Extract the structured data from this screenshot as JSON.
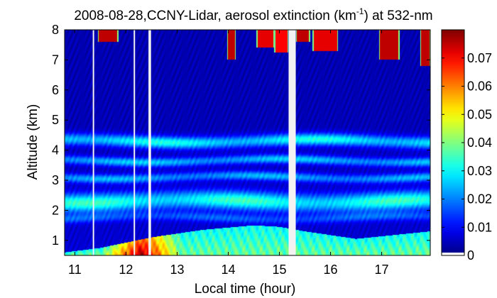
{
  "chart_data": {
    "type": "heatmap",
    "title_prefix": "2008-08-28,CCNY-Lidar, aerosol extinction (km",
    "title_superscript": "-1",
    "title_suffix": ") at 532-nm",
    "xlabel": "Local time (hour)",
    "ylabel": "Altitude (km)",
    "x_range": [
      10.8,
      17.95
    ],
    "y_range": [
      0.5,
      8
    ],
    "x_ticks": [
      11,
      12,
      13,
      14,
      15,
      16,
      17
    ],
    "x_tick_labels": [
      "11",
      "12",
      "13",
      "14",
      "15",
      "16",
      "17"
    ],
    "y_ticks": [
      1,
      2,
      3,
      4,
      5,
      6,
      7,
      8
    ],
    "y_tick_labels": [
      "1",
      "2",
      "3",
      "4",
      "5",
      "6",
      "7",
      "8"
    ],
    "colorbar": {
      "colormap": "jet",
      "range": [
        0,
        0.08
      ],
      "ticks": [
        0,
        0.01,
        0.02,
        0.03,
        0.04,
        0.05,
        0.06,
        0.07
      ],
      "tick_labels": [
        "0",
        "0.01",
        "0.02",
        "0.03",
        "0.04",
        "0.05",
        "0.06",
        "0.07"
      ]
    },
    "data_gaps_hours": [
      {
        "start": 11.35,
        "end": 11.37
      },
      {
        "start": 12.15,
        "end": 12.17
      },
      {
        "start": 12.44,
        "end": 12.49
      },
      {
        "start": 15.18,
        "end": 15.32
      }
    ],
    "aerosol_layers_km": [
      {
        "center": 4.3,
        "width": 0.2,
        "extinction": 0.028
      },
      {
        "center": 3.65,
        "width": 0.15,
        "extinction": 0.022
      },
      {
        "center": 3.1,
        "width": 0.15,
        "extinction": 0.02
      },
      {
        "center": 2.3,
        "width": 0.3,
        "extinction": 0.03
      },
      {
        "center": 1.75,
        "width": 0.15,
        "extinction": 0.012
      }
    ],
    "boundary_layer_top_km": [
      {
        "t": 10.8,
        "h": 0.6
      },
      {
        "t": 11.5,
        "h": 0.75
      },
      {
        "t": 12.5,
        "h": 1.1
      },
      {
        "t": 13.5,
        "h": 1.35
      },
      {
        "t": 14.5,
        "h": 1.5
      },
      {
        "t": 15.0,
        "h": 1.45
      },
      {
        "t": 15.5,
        "h": 1.3
      },
      {
        "t": 16.5,
        "h": 1.05
      },
      {
        "t": 17.95,
        "h": 1.3
      }
    ],
    "clouds": [
      {
        "t_start": 11.45,
        "t_end": 11.85,
        "base_km": 7.6,
        "extinction": 0.075
      },
      {
        "t_start": 13.98,
        "t_end": 14.15,
        "base_km": 7.0,
        "extinction": 0.075
      },
      {
        "t_start": 14.55,
        "t_end": 14.9,
        "base_km": 7.4,
        "extinction": 0.072
      },
      {
        "t_start": 14.9,
        "t_end": 15.18,
        "base_km": 7.25,
        "extinction": 0.07
      },
      {
        "t_start": 15.32,
        "t_end": 15.6,
        "base_km": 7.6,
        "extinction": 0.075
      },
      {
        "t_start": 15.65,
        "t_end": 16.15,
        "base_km": 7.3,
        "extinction": 0.072
      },
      {
        "t_start": 16.95,
        "t_end": 17.35,
        "base_km": 7.0,
        "extinction": 0.075
      },
      {
        "t_start": 17.75,
        "t_end": 17.95,
        "base_km": 6.8,
        "extinction": 0.075
      }
    ]
  }
}
